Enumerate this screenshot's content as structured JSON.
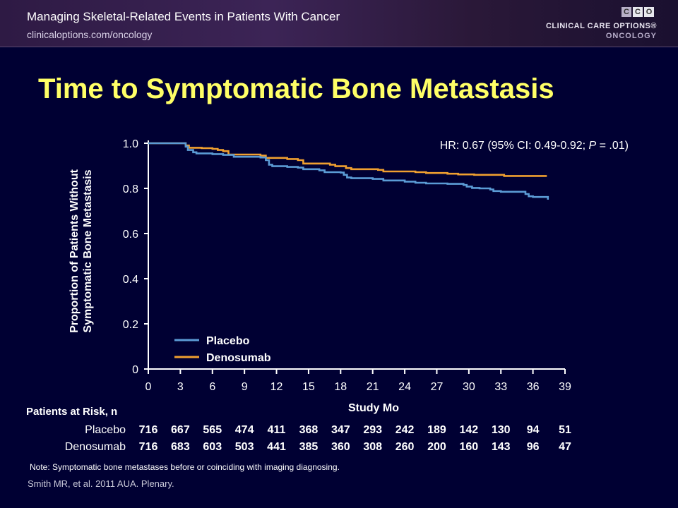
{
  "header": {
    "title": "Managing Skeletal-Related Events in Patients With Cancer",
    "url": "clinicaloptions.com/oncology",
    "logo_letters": [
      "C",
      "C",
      "O"
    ],
    "logo_name": "CLINICAL CARE OPTIONS®",
    "logo_sub": "ONCOLOGY"
  },
  "slide_title": "Time to Symptomatic Bone Metastasis",
  "colors": {
    "background": "#000033",
    "title": "#ffff66",
    "placebo": "#5b9bd5",
    "denosumab": "#f0a030"
  },
  "chart_data": {
    "type": "line",
    "title": "",
    "annotation": {
      "prefix": "HR: 0.67 (95% CI: 0.49-0.92; ",
      "p_label": "P",
      "suffix": " = .01)"
    },
    "ylabel_lines": [
      "Proportion of Patients Without",
      "Symptomatic Bone Metastasis"
    ],
    "xlabel": "Study Mo",
    "xlim": [
      0,
      39
    ],
    "ylim": [
      0,
      1.0
    ],
    "xticks": [
      "0",
      "3",
      "6",
      "9",
      "12",
      "15",
      "18",
      "21",
      "24",
      "27",
      "30",
      "33",
      "36",
      "39"
    ],
    "yticks": [
      "0",
      "0.2",
      "0.4",
      "0.6",
      "0.8",
      "1.0"
    ],
    "legend_position": "bottom-left",
    "series": [
      {
        "name": "Placebo",
        "step_points": [
          [
            0,
            1.0
          ],
          [
            3.5,
            0.985
          ],
          [
            3.7,
            0.97
          ],
          [
            4.2,
            0.96
          ],
          [
            4.5,
            0.955
          ],
          [
            6,
            0.952
          ],
          [
            7,
            0.948
          ],
          [
            8,
            0.94
          ],
          [
            10.5,
            0.937
          ],
          [
            11,
            0.925
          ],
          [
            11.3,
            0.905
          ],
          [
            11.6,
            0.898
          ],
          [
            13,
            0.895
          ],
          [
            14,
            0.892
          ],
          [
            14.5,
            0.885
          ],
          [
            16,
            0.88
          ],
          [
            16.5,
            0.872
          ],
          [
            18,
            0.87
          ],
          [
            18.3,
            0.86
          ],
          [
            18.6,
            0.848
          ],
          [
            19,
            0.845
          ],
          [
            21,
            0.842
          ],
          [
            22,
            0.835
          ],
          [
            24,
            0.83
          ],
          [
            25,
            0.825
          ],
          [
            26,
            0.822
          ],
          [
            28,
            0.82
          ],
          [
            29.5,
            0.815
          ],
          [
            29.8,
            0.808
          ],
          [
            30.3,
            0.802
          ],
          [
            31,
            0.8
          ],
          [
            32,
            0.795
          ],
          [
            32.3,
            0.788
          ],
          [
            33,
            0.785
          ],
          [
            35,
            0.785
          ],
          [
            35.3,
            0.775
          ],
          [
            35.6,
            0.765
          ],
          [
            36,
            0.762
          ],
          [
            37.3,
            0.762
          ],
          [
            37.4,
            0.75
          ]
        ]
      },
      {
        "name": "Denosumab",
        "step_points": [
          [
            0,
            1.0
          ],
          [
            3.5,
            0.99
          ],
          [
            3.8,
            0.98
          ],
          [
            5,
            0.978
          ],
          [
            6,
            0.975
          ],
          [
            6.5,
            0.97
          ],
          [
            7,
            0.965
          ],
          [
            7.5,
            0.95
          ],
          [
            10.5,
            0.945
          ],
          [
            11,
            0.935
          ],
          [
            13,
            0.93
          ],
          [
            14,
            0.925
          ],
          [
            14.5,
            0.91
          ],
          [
            17,
            0.905
          ],
          [
            17.5,
            0.898
          ],
          [
            18.5,
            0.89
          ],
          [
            19,
            0.885
          ],
          [
            21.5,
            0.882
          ],
          [
            22,
            0.875
          ],
          [
            25,
            0.872
          ],
          [
            26,
            0.868
          ],
          [
            28,
            0.865
          ],
          [
            29,
            0.862
          ],
          [
            30.5,
            0.86
          ],
          [
            32,
            0.86
          ],
          [
            33.3,
            0.855
          ],
          [
            37.3,
            0.855
          ]
        ]
      }
    ]
  },
  "risk_table": {
    "heading": "Patients at Risk, n",
    "rows": [
      {
        "label": "Placebo",
        "values": [
          "716",
          "667",
          "565",
          "474",
          "411",
          "368",
          "347",
          "293",
          "242",
          "189",
          "142",
          "130",
          "94",
          "51"
        ]
      },
      {
        "label": "Denosumab",
        "values": [
          "716",
          "683",
          "603",
          "503",
          "441",
          "385",
          "360",
          "308",
          "260",
          "200",
          "160",
          "143",
          "96",
          "47"
        ]
      }
    ]
  },
  "note": "Note: Symptomatic bone metastases before or coinciding with imaging diagnosing.",
  "citation": "Smith MR, et al. 2011 AUA. Plenary."
}
